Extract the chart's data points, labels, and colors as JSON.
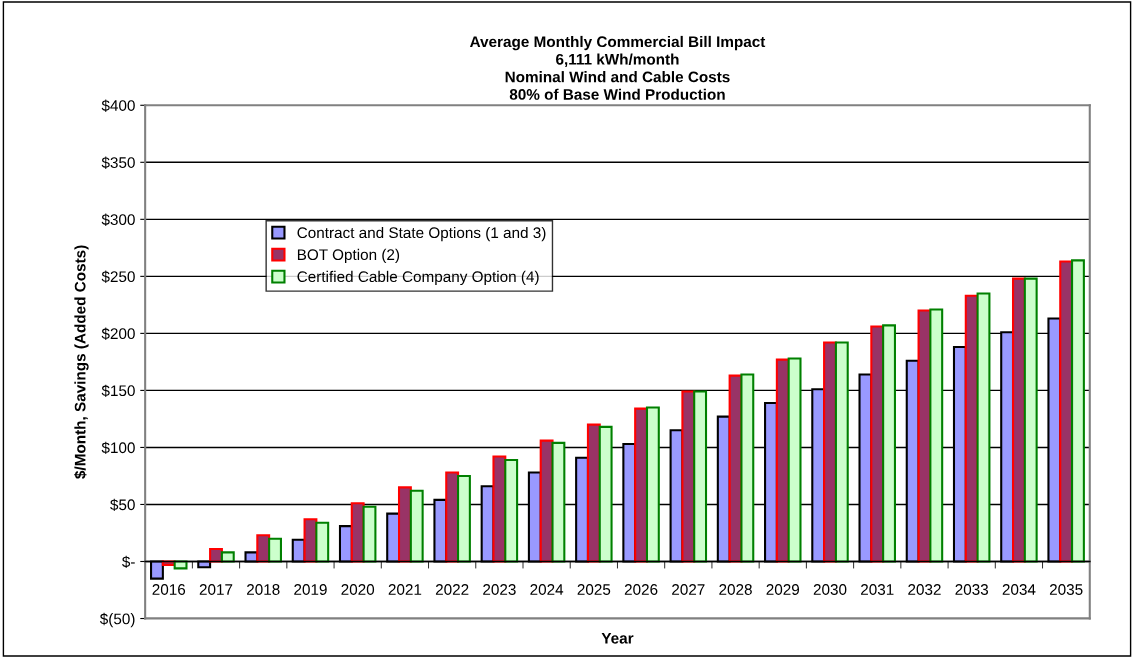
{
  "chart_data": {
    "type": "bar",
    "title": "Average Monthly Commercial Bill Impact\n6,111 kWh/month\nNominal Wind and Cable Costs\n80% of Base Wind Production",
    "xlabel": "Year",
    "ylabel": "$/Month, Savings (Added Costs)",
    "categories": [
      "2016",
      "2017",
      "2018",
      "2019",
      "2020",
      "2021",
      "2022",
      "2023",
      "2024",
      "2025",
      "2026",
      "2027",
      "2028",
      "2029",
      "2030",
      "2031",
      "2032",
      "2033",
      "2034",
      "2035"
    ],
    "series": [
      {
        "name": "Contract and State Options (1 and 3)",
        "color": "#9999ff",
        "values": [
          -15,
          -5,
          8,
          19,
          31,
          42,
          54,
          66,
          78,
          91,
          103,
          115,
          127,
          139,
          151,
          164,
          176,
          188,
          201,
          213
        ]
      },
      {
        "name": "BOT Option (2)",
        "color": "#993366",
        "values": [
          -3,
          11,
          23,
          37,
          51,
          65,
          78,
          92,
          106,
          120,
          134,
          149,
          163,
          177,
          192,
          206,
          220,
          233,
          248,
          263
        ]
      },
      {
        "name": "Certified Cable Company Option (4)",
        "color": "#ccffcc",
        "values": [
          -6,
          8,
          20,
          34,
          48,
          62,
          75,
          89,
          104,
          118,
          135,
          149,
          164,
          178,
          192,
          207,
          221,
          235,
          248,
          264
        ]
      }
    ],
    "ylim": [
      -50,
      400
    ],
    "yticks": [
      {
        "value": -50,
        "label": "$(50)"
      },
      {
        "value": 0,
        "label": "$-"
      },
      {
        "value": 50,
        "label": "$50"
      },
      {
        "value": 100,
        "label": "$100"
      },
      {
        "value": 150,
        "label": "$150"
      },
      {
        "value": 200,
        "label": "$200"
      },
      {
        "value": 250,
        "label": "$250"
      },
      {
        "value": 300,
        "label": "$300"
      },
      {
        "value": 350,
        "label": "$350"
      },
      {
        "value": 400,
        "label": "$400"
      }
    ],
    "grid": "y",
    "legend": "top left"
  }
}
